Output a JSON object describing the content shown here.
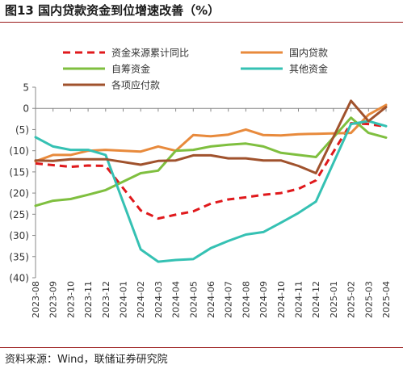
{
  "title": "图13 国内贷款资金到位增速改善（%）",
  "source": "资料来源：Wind，联储证券研究院",
  "colors": {
    "accent_rule": "#9a1b1b",
    "axis": "#888888",
    "text": "#333333"
  },
  "chart_data": {
    "type": "line",
    "title": "图13 国内贷款资金到位增速改善（%）",
    "xlabel": "",
    "ylabel": "",
    "ylim": [
      -40,
      5
    ],
    "yticks": [
      5,
      0,
      -5,
      -10,
      -15,
      -20,
      -25,
      -30,
      -35,
      -40
    ],
    "ytick_labels": [
      "5",
      "0",
      "(5)",
      "(10)",
      "(15)",
      "(20)",
      "(25)",
      "(30)",
      "(35)",
      "(40)"
    ],
    "grid": false,
    "legend_position": "top",
    "categories": [
      "2023-08",
      "2023-09",
      "2023-10",
      "2023-11",
      "2023-12",
      "2024-01",
      "2024-02",
      "2024-03",
      "2024-04",
      "2024-05",
      "2024-06",
      "2024-07",
      "2024-08",
      "2024-09",
      "2024-10",
      "2024-11",
      "2024-12",
      "2025-01",
      "2025-02",
      "2025-03",
      "2025-04"
    ],
    "x": [
      "2023-08",
      "2023-09",
      "2023-10",
      "2023-11",
      "2023-12",
      "2024-02",
      "2024-03",
      "2024-04",
      "2024-05",
      "2024-06",
      "2024-07",
      "2024-08",
      "2024-09",
      "2024-10",
      "2024-11",
      "2024-12",
      "2025-02",
      "2025-03",
      "2025-04"
    ],
    "series": [
      {
        "name": "资金来源累计同比",
        "color": "#e0191c",
        "dash": "9,6",
        "width": 3,
        "values": [
          -13.0,
          -13.4,
          -13.8,
          -13.5,
          -13.6,
          -24.1,
          -26.0,
          -25.1,
          -24.3,
          -22.5,
          -21.5,
          -21.0,
          -20.4,
          -20.0,
          -19.0,
          -17.0,
          -3.5,
          -3.7,
          -4.3
        ]
      },
      {
        "name": "国内贷款",
        "color": "#e88a3c",
        "dash": "",
        "width": 3,
        "values": [
          -12.5,
          -11.0,
          -11.0,
          -10.0,
          -9.8,
          -10.2,
          -9.0,
          -10.0,
          -6.3,
          -6.6,
          -6.2,
          -5.0,
          -6.3,
          -6.4,
          -6.1,
          -6.0,
          -5.8,
          -1.5,
          0.8
        ]
      },
      {
        "name": "自筹资金",
        "color": "#7fbf3f",
        "dash": "",
        "width": 3,
        "values": [
          -23.0,
          -21.8,
          -21.4,
          -20.4,
          -19.3,
          -15.3,
          -14.7,
          -10.0,
          -9.8,
          -9.0,
          -8.6,
          -8.3,
          -9.0,
          -10.5,
          -11.0,
          -11.5,
          -2.2,
          -5.8,
          -6.9
        ]
      },
      {
        "name": "其他资金",
        "color": "#35c1b3",
        "dash": "",
        "width": 3,
        "values": [
          -6.8,
          -9.0,
          -9.8,
          -9.8,
          -11.0,
          -33.3,
          -36.2,
          -35.8,
          -35.6,
          -33.0,
          -31.3,
          -29.8,
          -29.2,
          -27.0,
          -24.7,
          -22.0,
          -3.7,
          -3.0,
          -4.2
        ]
      },
      {
        "name": "各项应付款",
        "color": "#a0522d",
        "dash": "",
        "width": 3,
        "values": [
          -12.3,
          -12.4,
          -12.0,
          -12.0,
          -12.0,
          -13.3,
          -12.4,
          -12.3,
          -11.1,
          -11.1,
          -11.8,
          -11.8,
          -12.3,
          -12.3,
          -13.6,
          -15.3,
          1.8,
          -3.0,
          0.3
        ]
      }
    ]
  }
}
